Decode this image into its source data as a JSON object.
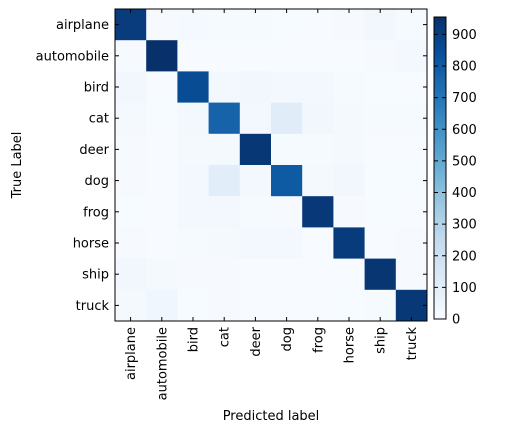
{
  "chart_data": {
    "type": "heatmap",
    "title": "",
    "xlabel": "Predicted label",
    "ylabel": "True Label",
    "categories": [
      "airplane",
      "automobile",
      "bird",
      "cat",
      "deer",
      "dog",
      "frog",
      "horse",
      "ship",
      "truck"
    ],
    "values": [
      [
        910,
        5,
        18,
        10,
        8,
        3,
        2,
        4,
        30,
        10
      ],
      [
        5,
        955,
        2,
        2,
        1,
        1,
        2,
        1,
        7,
        24
      ],
      [
        30,
        1,
        855,
        25,
        30,
        22,
        22,
        10,
        3,
        2
      ],
      [
        12,
        3,
        22,
        770,
        20,
        110,
        30,
        15,
        8,
        10
      ],
      [
        6,
        1,
        15,
        12,
        930,
        8,
        10,
        15,
        2,
        1
      ],
      [
        5,
        2,
        20,
        105,
        22,
        800,
        12,
        28,
        3,
        3
      ],
      [
        3,
        2,
        25,
        20,
        10,
        5,
        925,
        5,
        3,
        2
      ],
      [
        6,
        1,
        10,
        12,
        25,
        22,
        2,
        915,
        2,
        5
      ],
      [
        30,
        12,
        5,
        5,
        2,
        2,
        2,
        1,
        935,
        6
      ],
      [
        12,
        35,
        3,
        5,
        1,
        2,
        2,
        3,
        10,
        927
      ]
    ],
    "colorbar": {
      "ticks": [
        0,
        100,
        200,
        300,
        400,
        500,
        600,
        700,
        800,
        900
      ],
      "min": 0,
      "max": 955,
      "colormap": "Blues"
    },
    "colors": {
      "low": "#f7fbff",
      "high": "#08306b"
    }
  }
}
